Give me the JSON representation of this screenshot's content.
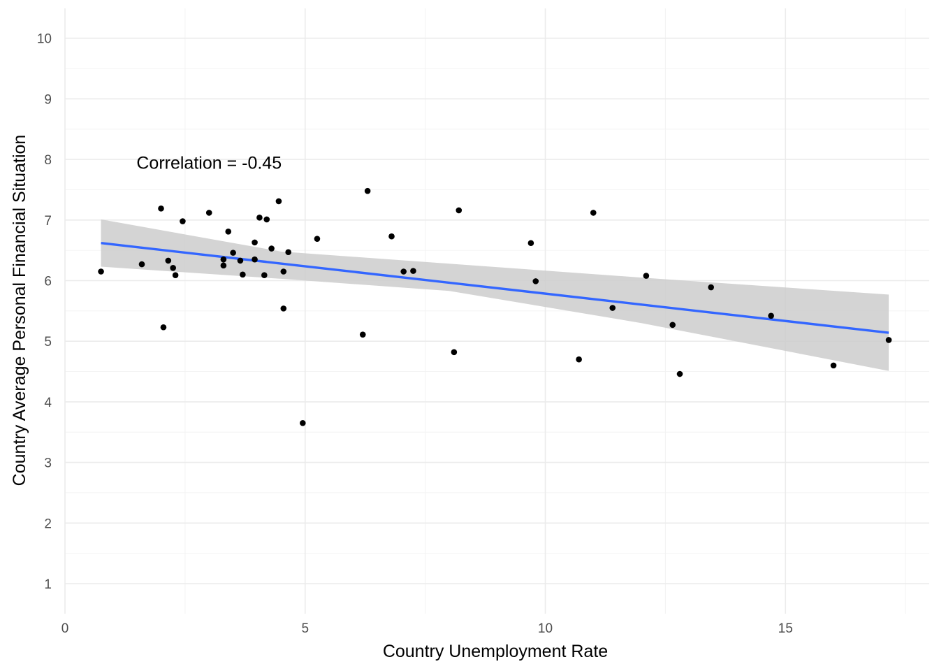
{
  "chart_data": {
    "type": "scatter",
    "xlabel": "Country Unemployment Rate",
    "ylabel": "Country Average Personal Financial Situation",
    "xlim": [
      0,
      17.8
    ],
    "ylim": [
      0.5,
      10.2
    ],
    "x_ticks": [
      0,
      5,
      10,
      15
    ],
    "y_ticks": [
      1,
      2,
      3,
      4,
      5,
      6,
      7,
      8,
      9,
      10
    ],
    "grid": true,
    "annotation": {
      "text": "Correlation = -0.45",
      "x": 3.0,
      "y": 7.95
    },
    "points": [
      {
        "x": 0.75,
        "y": 6.15
      },
      {
        "x": 1.6,
        "y": 6.27
      },
      {
        "x": 2.0,
        "y": 7.19
      },
      {
        "x": 2.05,
        "y": 5.23
      },
      {
        "x": 2.15,
        "y": 6.33
      },
      {
        "x": 2.25,
        "y": 6.21
      },
      {
        "x": 2.3,
        "y": 6.09
      },
      {
        "x": 2.45,
        "y": 6.98
      },
      {
        "x": 3.0,
        "y": 7.12
      },
      {
        "x": 3.3,
        "y": 6.35
      },
      {
        "x": 3.3,
        "y": 6.25
      },
      {
        "x": 3.4,
        "y": 6.81
      },
      {
        "x": 3.5,
        "y": 6.46
      },
      {
        "x": 3.65,
        "y": 6.33
      },
      {
        "x": 3.7,
        "y": 6.1
      },
      {
        "x": 3.95,
        "y": 6.63
      },
      {
        "x": 3.95,
        "y": 6.35
      },
      {
        "x": 4.05,
        "y": 7.04
      },
      {
        "x": 4.15,
        "y": 6.09
      },
      {
        "x": 4.2,
        "y": 7.01
      },
      {
        "x": 4.3,
        "y": 6.53
      },
      {
        "x": 4.45,
        "y": 7.31
      },
      {
        "x": 4.55,
        "y": 6.15
      },
      {
        "x": 4.55,
        "y": 5.54
      },
      {
        "x": 4.65,
        "y": 6.47
      },
      {
        "x": 4.95,
        "y": 3.65
      },
      {
        "x": 5.25,
        "y": 6.69
      },
      {
        "x": 6.2,
        "y": 5.11
      },
      {
        "x": 6.3,
        "y": 7.48
      },
      {
        "x": 6.8,
        "y": 6.73
      },
      {
        "x": 7.05,
        "y": 6.15
      },
      {
        "x": 7.25,
        "y": 6.16
      },
      {
        "x": 8.1,
        "y": 4.82
      },
      {
        "x": 8.2,
        "y": 7.16
      },
      {
        "x": 9.7,
        "y": 6.62
      },
      {
        "x": 9.8,
        "y": 5.99
      },
      {
        "x": 10.7,
        "y": 4.7
      },
      {
        "x": 11.0,
        "y": 7.12
      },
      {
        "x": 11.4,
        "y": 5.55
      },
      {
        "x": 12.1,
        "y": 6.08
      },
      {
        "x": 12.65,
        "y": 5.27
      },
      {
        "x": 12.8,
        "y": 4.46
      },
      {
        "x": 13.45,
        "y": 5.89
      },
      {
        "x": 14.7,
        "y": 5.42
      },
      {
        "x": 16.0,
        "y": 4.6
      },
      {
        "x": 17.15,
        "y": 5.02
      }
    ],
    "trend_line": {
      "color": "#3366ff",
      "x": [
        0.75,
        17.15
      ],
      "y": [
        6.62,
        5.14
      ]
    },
    "confidence_band": {
      "color": "#cccccc",
      "x": [
        0.75,
        4.5,
        8.0,
        12.0,
        17.15
      ],
      "upper": [
        7.01,
        6.48,
        6.28,
        6.05,
        5.77
      ],
      "lower": [
        6.23,
        6.03,
        5.83,
        5.3,
        4.51
      ]
    },
    "point_color": "#000000"
  }
}
